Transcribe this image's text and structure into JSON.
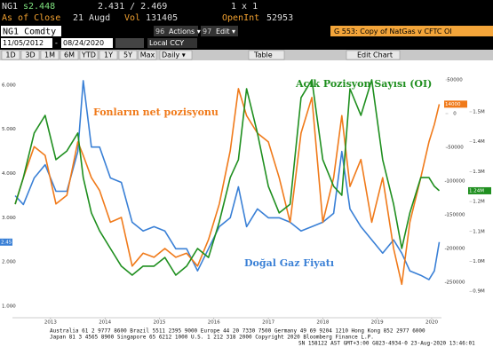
{
  "header": {
    "ticker": "NG1",
    "last": "s2.448",
    "bidask": "2.431 / 2.469",
    "size": "1 x 1",
    "asof_label": "As of Close",
    "asof": "21 Augd",
    "vol_label": "Vol",
    "vol": "131405",
    "oi_label": "OpenInt",
    "oi": "52953",
    "security": "NG1 Comdty",
    "actions_num": "96",
    "actions": "Actions ▾",
    "edit_num": "97",
    "edit": "Edit ▾",
    "chart_name": "G 553: Copy of NatGas v CFTC OI",
    "start_date": "11/05/2012",
    "dash": "-",
    "end_date": "08/24/2020",
    "currency": "Local CCY"
  },
  "toolbar": {
    "buttons": [
      "1D",
      "3D",
      "1M",
      "6M",
      "YTD",
      "1Y",
      "5Y",
      "Max"
    ],
    "frequency": "Daily ▾",
    "table": "Table",
    "edit_chart": "Edit Chart"
  },
  "footer": {
    "lines": [
      "Australia 61 2 9777 8600 Brazil 5511 2395 9000 Europe 44 20 7330 7500 Germany 49 69 9204 1210 Hong Kong 852 2977 6000",
      "Japan 81 3 4565 8900      Singapore 65 6212 1000      U.S. 1 212 318 2000      Copyright 2020 Bloomberg Finance L.P.",
      "SN 158122 AST  GMT+3:00 G823-4934-0 23-Aug-2020 13:46:01"
    ]
  },
  "chart_data": {
    "type": "line",
    "annotations": [
      {
        "text": "Fonların net pozisyonu",
        "color": "#f07a1a"
      },
      {
        "text": "Açık Pozisyon Sayısı (OI)",
        "color": "#1f8f1f"
      },
      {
        "text": "Doğal Gaz Fiyatı",
        "color": "#3a80d6"
      }
    ],
    "x": [
      2012.85,
      2013.0,
      2013.2,
      2013.4,
      2013.6,
      2013.8,
      2014.0,
      2014.1,
      2014.25,
      2014.4,
      2014.6,
      2014.8,
      2015.0,
      2015.2,
      2015.4,
      2015.6,
      2015.8,
      2016.0,
      2016.2,
      2016.4,
      2016.6,
      2016.8,
      2016.95,
      2017.1,
      2017.3,
      2017.5,
      2017.7,
      2017.9,
      2018.1,
      2018.3,
      2018.5,
      2018.7,
      2018.85,
      2019.0,
      2019.2,
      2019.4,
      2019.6,
      2019.8,
      2019.95,
      2020.1,
      2020.3,
      2020.45,
      2020.55,
      2020.64
    ],
    "xlim": [
      2012.8,
      2020.68
    ],
    "xticks": [
      {
        "value": 2013.5,
        "label": "2013"
      },
      {
        "value": 2014.5,
        "label": "2014"
      },
      {
        "value": 2015.5,
        "label": "2015"
      },
      {
        "value": 2016.5,
        "label": "2016"
      },
      {
        "value": 2017.5,
        "label": "2017"
      },
      {
        "value": 2018.5,
        "label": "2018"
      },
      {
        "value": 2019.5,
        "label": "2019"
      },
      {
        "value": 2020.5,
        "label": "2020"
      }
    ],
    "ylim": [
      0.74,
      6.52
    ],
    "yticks": [
      {
        "value": 1,
        "label": "1.000"
      },
      {
        "value": 2,
        "label": "2.000"
      },
      {
        "value": 3,
        "label": "3.000"
      },
      {
        "value": 4,
        "label": "4.000"
      },
      {
        "value": 5,
        "label": "5.000"
      },
      {
        "value": 6,
        "label": "6.000"
      }
    ],
    "y2lim": [
      -302600,
      76300
    ],
    "y2ticks": [
      50000,
      0,
      -50000,
      -100000,
      -150000,
      -200000,
      -250000
    ],
    "y3lim": [
      811600,
      1666000
    ],
    "y3ticks": [
      {
        "value": 1500000,
        "label": "1.5M"
      },
      {
        "value": 1400000,
        "label": "1.4M"
      },
      {
        "value": 1300000,
        "label": "1.3M"
      },
      {
        "value": 1200000,
        "label": "1.2M"
      },
      {
        "value": 1100000,
        "label": "1.1M"
      },
      {
        "value": 1000000,
        "label": "1.0M"
      },
      {
        "value": 900000,
        "label": "0.9M"
      }
    ],
    "grid": false,
    "series": [
      {
        "name": "Doğal Gaz Fiyatı",
        "color": "#3a80d6",
        "axis": "y",
        "last_label": "2.45",
        "values": [
          3.5,
          3.3,
          3.9,
          4.2,
          3.6,
          3.6,
          4.5,
          6.1,
          4.6,
          4.6,
          3.9,
          3.8,
          2.9,
          2.7,
          2.8,
          2.7,
          2.3,
          2.3,
          1.8,
          2.3,
          2.8,
          3.0,
          3.7,
          2.8,
          3.2,
          3.0,
          3.0,
          2.9,
          2.7,
          2.8,
          2.9,
          3.1,
          4.5,
          3.2,
          2.8,
          2.5,
          2.2,
          2.5,
          2.2,
          1.8,
          1.7,
          1.6,
          1.8,
          2.45
        ]
      },
      {
        "name": "Fonların net pozisyonu",
        "color": "#f07a1a",
        "axis": "y2",
        "last_label": "14000",
        "values": [
          -134000,
          -95000,
          -49000,
          -62000,
          -134000,
          -121000,
          -42000,
          -62000,
          -95000,
          -114000,
          -161000,
          -154000,
          -226000,
          -207000,
          -213000,
          -200000,
          -213000,
          -207000,
          -226000,
          -187000,
          -134000,
          -55000,
          37000,
          -3000,
          -29000,
          -42000,
          -95000,
          -161000,
          -29000,
          24000,
          -161000,
          -95000,
          -3000,
          -108000,
          -68000,
          -161000,
          -95000,
          -200000,
          -253000,
          -161000,
          -95000,
          -42000,
          -16000,
          14000
        ]
      },
      {
        "name": "Açık Pozisyon Sayısı (OI)",
        "color": "#1f8f1f",
        "axis": "y3",
        "last_label": "1.24M",
        "values": [
          1191000,
          1280000,
          1429000,
          1488000,
          1340000,
          1369000,
          1429000,
          1280000,
          1162000,
          1102000,
          1043000,
          984000,
          954000,
          984000,
          984000,
          1013000,
          954000,
          984000,
          1043000,
          1013000,
          1132000,
          1280000,
          1340000,
          1577000,
          1429000,
          1251000,
          1162000,
          1191000,
          1547000,
          1607000,
          1340000,
          1251000,
          1221000,
          1577000,
          1488000,
          1607000,
          1340000,
          1191000,
          1043000,
          1162000,
          1280000,
          1280000,
          1251000,
          1236000
        ]
      }
    ]
  }
}
